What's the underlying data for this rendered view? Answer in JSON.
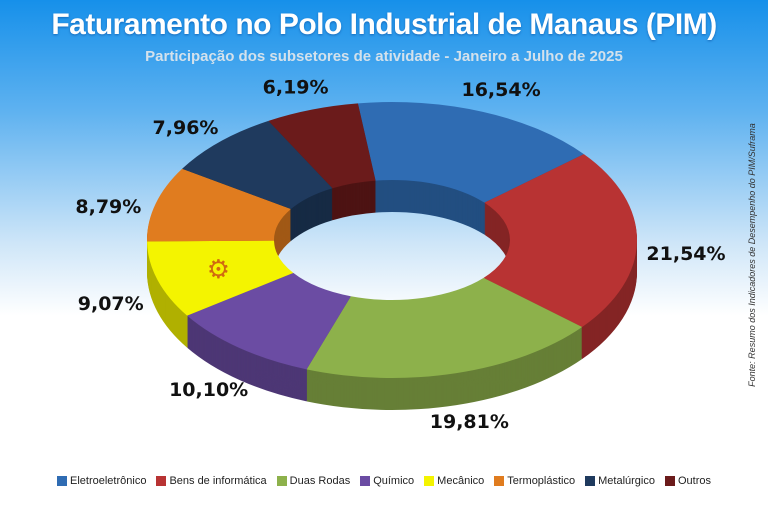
{
  "chart_data": {
    "type": "pie",
    "style": "3d-donut",
    "title": "Faturamento no Polo Industrial de Manaus (PIM)",
    "subtitle": "Participação dos subsetores de atividade - Janeiro a Julho de 2025",
    "source": "Fonte: Resumo dos Indicadores de Desempenho do PIM/Suframa",
    "legend_position": "bottom",
    "slices": [
      {
        "name": "Eletroeletrônico",
        "value": 16.54,
        "label": "16,54%",
        "color": "#2f6cb3",
        "icon": "tv-icon"
      },
      {
        "name": "Bens de informática",
        "value": 21.54,
        "label": "21,54%",
        "color": "#b83333",
        "icon": "laptop-icon"
      },
      {
        "name": "Duas Rodas",
        "value": 19.81,
        "label": "19,81%",
        "color": "#8db14b",
        "icon": "motorcycle-icon"
      },
      {
        "name": "Químico",
        "value": 10.1,
        "label": "10,10%",
        "color": "#6b4ca3",
        "icon": "flask-icon"
      },
      {
        "name": "Mecânico",
        "value": 9.07,
        "label": "9,07%",
        "color": "#f4f400",
        "icon": "gears-icon"
      },
      {
        "name": "Termoplástico",
        "value": 8.79,
        "label": "8,79%",
        "color": "#e07c1f",
        "icon": "machine-icon"
      },
      {
        "name": "Metalúrgico",
        "value": 7.96,
        "label": "7,96%",
        "color": "#1f3a5e",
        "icon": "anvil-icon"
      },
      {
        "name": "Outros",
        "value": 6.19,
        "label": "6,19%",
        "color": "#6b1b1b",
        "icon": "boxes-icon"
      }
    ]
  }
}
